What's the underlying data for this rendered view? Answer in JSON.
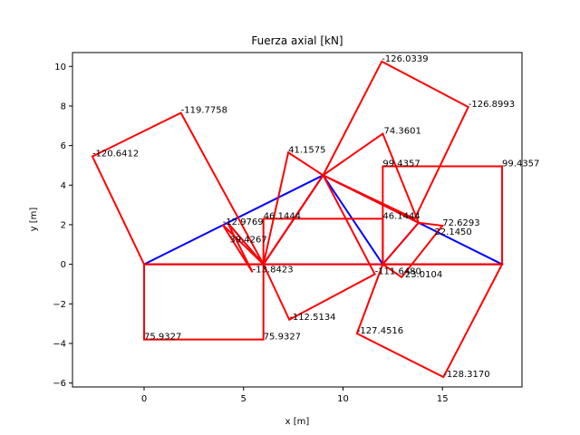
{
  "chart_data": {
    "type": "line",
    "title": "Fuerza axial [kN]",
    "xlabel": "x [m]",
    "ylabel": "y [m]",
    "xlim": [
      -3.6,
      19.0
    ],
    "ylim": [
      -6.2,
      10.7
    ],
    "xticks": [
      0,
      5,
      10,
      15
    ],
    "yticks": [
      -6,
      -4,
      -2,
      0,
      2,
      4,
      6,
      8,
      10
    ],
    "grid": false,
    "colors": {
      "structure": "#0000ff",
      "diagram": "#ff0000"
    },
    "series": [
      {
        "role": "structure",
        "segments": [
          [
            [
              0,
              0
            ],
            [
              18,
              0
            ]
          ],
          [
            [
              0,
              0
            ],
            [
              9,
              4.5
            ]
          ],
          [
            [
              9,
              4.5
            ],
            [
              18,
              0
            ]
          ],
          [
            [
              6,
              0
            ],
            [
              9,
              4.5
            ]
          ],
          [
            [
              9,
              4.5
            ],
            [
              12,
              0
            ]
          ],
          [
            [
              6,
              0
            ],
            [
              4.2,
              2.1
            ]
          ],
          [
            [
              12,
              0
            ],
            [
              13.8,
              2.1
            ]
          ]
        ]
      },
      {
        "role": "diagram",
        "polygons": [
          [
            [
              0,
              0
            ],
            [
              0,
              -3.8
            ],
            [
              6,
              -3.8
            ],
            [
              6,
              0
            ]
          ],
          [
            [
              12,
              0
            ],
            [
              12,
              4.95
            ],
            [
              18,
              4.95
            ],
            [
              18,
              0
            ]
          ],
          [
            [
              6,
              0
            ],
            [
              6,
              2.3
            ],
            [
              12,
              2.3
            ],
            [
              12,
              0
            ]
          ],
          [
            [
              0,
              0
            ],
            [
              -2.6,
              5.45
            ],
            [
              1.85,
              7.65
            ],
            [
              6,
              0
            ]
          ],
          [
            [
              9,
              4.5
            ],
            [
              11.95,
              10.25
            ],
            [
              16.3,
              7.95
            ],
            [
              13.6,
              2.3
            ]
          ],
          [
            [
              12,
              0
            ],
            [
              10.7,
              -3.5
            ],
            [
              15.05,
              -5.7
            ],
            [
              18,
              0
            ]
          ],
          [
            [
              6,
              0
            ],
            [
              7.3,
              -2.8
            ],
            [
              11.6,
              -0.5
            ],
            [
              9,
              4.5
            ]
          ],
          [
            [
              6,
              0
            ],
            [
              7.25,
              5.65
            ],
            [
              9,
              4.5
            ]
          ],
          [
            [
              9,
              4.5
            ],
            [
              12,
              6.6
            ],
            [
              13.8,
              2.1
            ]
          ],
          [
            [
              6,
              0
            ],
            [
              3.95,
              2.0
            ],
            [
              5.45,
              -0.4
            ],
            [
              4.2,
              2.1
            ]
          ],
          [
            [
              12,
              0
            ],
            [
              13.8,
              2.1
            ],
            [
              15.0,
              1.95
            ],
            [
              12.95,
              -0.65
            ]
          ]
        ]
      }
    ],
    "annotations": [
      {
        "text": "-126.0339",
        "x": 11.95,
        "y": 10.25
      },
      {
        "text": "-126.8993",
        "x": 16.3,
        "y": 7.95
      },
      {
        "text": "-119.7758",
        "x": 1.85,
        "y": 7.65
      },
      {
        "text": "-120.6412",
        "x": -2.6,
        "y": 5.45
      },
      {
        "text": "74.3601",
        "x": 12.05,
        "y": 6.6
      },
      {
        "text": "41.1575",
        "x": 7.25,
        "y": 5.65
      },
      {
        "text": "99.4357",
        "x": 12.0,
        "y": 4.95
      },
      {
        "text": "99.4357",
        "x": 18.0,
        "y": 4.95
      },
      {
        "text": "46.1444",
        "x": 6.0,
        "y": 2.3
      },
      {
        "text": "46.1444",
        "x": 12.0,
        "y": 2.3
      },
      {
        "text": "72.6293",
        "x": 15.0,
        "y": 1.95
      },
      {
        "text": "-12.9769",
        "x": 3.95,
        "y": 2.0
      },
      {
        "text": "22.1450",
        "x": 14.6,
        "y": 1.5
      },
      {
        "text": "39.4267",
        "x": 4.3,
        "y": 1.1
      },
      {
        "text": "-13.8423",
        "x": 5.45,
        "y": -0.4
      },
      {
        "text": "-111.6480",
        "x": 11.6,
        "y": -0.5
      },
      {
        "text": "-23.0104",
        "x": 12.95,
        "y": -0.65
      },
      {
        "text": "-112.5134",
        "x": 7.3,
        "y": -2.8
      },
      {
        "text": "-127.4516",
        "x": 10.7,
        "y": -3.5
      },
      {
        "text": "75.9327",
        "x": 0.0,
        "y": -3.8
      },
      {
        "text": "75.9327",
        "x": 6.0,
        "y": -3.8
      },
      {
        "text": "-128.3170",
        "x": 15.05,
        "y": -5.7
      }
    ]
  }
}
